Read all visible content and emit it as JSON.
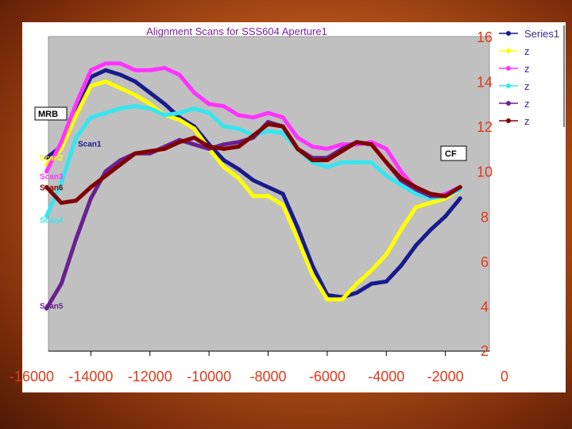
{
  "chart_data": {
    "type": "line",
    "title": "Alignment Scans for SSS604 Aperture1",
    "xlabel": "",
    "ylabel": "",
    "xlim": [
      -16000,
      0
    ],
    "ylim": [
      2,
      16
    ],
    "x_ticks": [
      "-16000",
      "-14000",
      "-12000",
      "-10000",
      "-8000",
      "-6000",
      "-4000",
      "-2000",
      "0"
    ],
    "y_ticks": [
      "2",
      "4",
      "6",
      "8",
      "10",
      "12",
      "14",
      "16"
    ],
    "grid": false,
    "legend_position": "right",
    "series": [
      {
        "name": "Series1",
        "label": "Scan1",
        "color": "#1a1a8c",
        "marker": "diamond",
        "points": [
          [
            -15500,
            10.6
          ],
          [
            -15000,
            11.1
          ],
          [
            -14500,
            12.8
          ],
          [
            -14000,
            14.2
          ],
          [
            -13500,
            14.5
          ],
          [
            -13000,
            14.3
          ],
          [
            -12500,
            14.0
          ],
          [
            -12000,
            13.5
          ],
          [
            -11500,
            13.0
          ],
          [
            -11000,
            12.4
          ],
          [
            -10500,
            12.0
          ],
          [
            -10000,
            11.2
          ],
          [
            -9500,
            10.5
          ],
          [
            -9000,
            10.1
          ],
          [
            -8500,
            9.6
          ],
          [
            -8000,
            9.3
          ],
          [
            -7500,
            9.0
          ],
          [
            -7000,
            7.5
          ],
          [
            -6500,
            5.8
          ],
          [
            -6000,
            4.5
          ],
          [
            -5500,
            4.4
          ],
          [
            -5000,
            4.6
          ],
          [
            -4500,
            5.0
          ],
          [
            -4000,
            5.1
          ],
          [
            -3500,
            5.8
          ],
          [
            -3000,
            6.7
          ],
          [
            -2500,
            7.4
          ],
          [
            -2000,
            8.0
          ],
          [
            -1500,
            8.8
          ]
        ]
      },
      {
        "name": "z",
        "label": "Scan2",
        "color": "#ffff00",
        "marker": "square",
        "points": [
          [
            -15500,
            10.3
          ],
          [
            -15000,
            11.0
          ],
          [
            -14500,
            12.5
          ],
          [
            -14000,
            13.8
          ],
          [
            -13500,
            14.0
          ],
          [
            -13000,
            13.7
          ],
          [
            -12500,
            13.4
          ],
          [
            -12000,
            13.0
          ],
          [
            -11500,
            12.5
          ],
          [
            -11000,
            12.3
          ],
          [
            -10500,
            11.9
          ],
          [
            -10000,
            11.0
          ],
          [
            -9500,
            10.2
          ],
          [
            -9000,
            9.7
          ],
          [
            -8500,
            8.9
          ],
          [
            -8000,
            8.9
          ],
          [
            -7500,
            8.5
          ],
          [
            -7000,
            7.0
          ],
          [
            -6500,
            5.4
          ],
          [
            -6000,
            4.3
          ],
          [
            -5500,
            4.3
          ],
          [
            -5000,
            5.0
          ],
          [
            -4500,
            5.6
          ],
          [
            -4000,
            6.3
          ],
          [
            -3500,
            7.4
          ],
          [
            -3000,
            8.4
          ],
          [
            -2500,
            8.6
          ],
          [
            -2000,
            8.8
          ],
          [
            -1500,
            9.2
          ]
        ]
      },
      {
        "name": "z",
        "label": "Scan3",
        "color": "#ff33ff",
        "marker": "triangle",
        "points": [
          [
            -15500,
            10.0
          ],
          [
            -15000,
            11.3
          ],
          [
            -14500,
            13.0
          ],
          [
            -14000,
            14.5
          ],
          [
            -13500,
            14.8
          ],
          [
            -13000,
            14.8
          ],
          [
            -12500,
            14.5
          ],
          [
            -12000,
            14.5
          ],
          [
            -11500,
            14.6
          ],
          [
            -11000,
            14.3
          ],
          [
            -10500,
            13.5
          ],
          [
            -10000,
            13.0
          ],
          [
            -9500,
            12.9
          ],
          [
            -9000,
            12.5
          ],
          [
            -8500,
            12.4
          ],
          [
            -8000,
            12.6
          ],
          [
            -7500,
            12.4
          ],
          [
            -7000,
            11.5
          ],
          [
            -6500,
            11.1
          ],
          [
            -6000,
            11.0
          ],
          [
            -5500,
            11.2
          ],
          [
            -5000,
            11.2
          ],
          [
            -4500,
            11.3
          ],
          [
            -4000,
            11.0
          ],
          [
            -3500,
            10.0
          ],
          [
            -3000,
            9.2
          ],
          [
            -2500,
            8.8
          ],
          [
            -2000,
            9.0
          ],
          [
            -1500,
            9.3
          ]
        ]
      },
      {
        "name": "z",
        "label": "Scan4",
        "color": "#33e6f0",
        "marker": "cross",
        "points": [
          [
            -15500,
            8.0
          ],
          [
            -15000,
            9.5
          ],
          [
            -14500,
            11.5
          ],
          [
            -14000,
            12.4
          ],
          [
            -13500,
            12.6
          ],
          [
            -13000,
            12.8
          ],
          [
            -12500,
            12.9
          ],
          [
            -12000,
            12.8
          ],
          [
            -11500,
            12.5
          ],
          [
            -11000,
            12.6
          ],
          [
            -10500,
            12.8
          ],
          [
            -10000,
            12.6
          ],
          [
            -9500,
            12.0
          ],
          [
            -9000,
            11.9
          ],
          [
            -8500,
            11.6
          ],
          [
            -8000,
            11.8
          ],
          [
            -7500,
            11.7
          ],
          [
            -7000,
            11.0
          ],
          [
            -6500,
            10.4
          ],
          [
            -6000,
            10.2
          ],
          [
            -5500,
            10.4
          ],
          [
            -5000,
            10.4
          ],
          [
            -4500,
            10.4
          ],
          [
            -4000,
            9.8
          ],
          [
            -3500,
            9.4
          ],
          [
            -3000,
            9.0
          ],
          [
            -2500,
            8.8
          ],
          [
            -2000,
            8.9
          ],
          [
            -1500,
            9.2
          ]
        ]
      },
      {
        "name": "z",
        "label": "Scan5",
        "color": "#6a2090",
        "marker": "star",
        "points": [
          [
            -15500,
            3.9
          ],
          [
            -15000,
            5.0
          ],
          [
            -14500,
            7.0
          ],
          [
            -14000,
            8.8
          ],
          [
            -13500,
            10.0
          ],
          [
            -13000,
            10.5
          ],
          [
            -12500,
            10.8
          ],
          [
            -12000,
            10.8
          ],
          [
            -11500,
            11.1
          ],
          [
            -11000,
            11.4
          ],
          [
            -10500,
            11.2
          ],
          [
            -10000,
            11.0
          ],
          [
            -9500,
            11.2
          ],
          [
            -9000,
            11.3
          ],
          [
            -8500,
            11.5
          ],
          [
            -8000,
            12.2
          ],
          [
            -7500,
            12.0
          ],
          [
            -7000,
            11.0
          ],
          [
            -6500,
            10.6
          ],
          [
            -6000,
            10.6
          ],
          [
            -5500,
            11.0
          ],
          [
            -5000,
            11.3
          ],
          [
            -4500,
            11.2
          ],
          [
            -4000,
            10.4
          ],
          [
            -3500,
            9.6
          ],
          [
            -3000,
            9.2
          ],
          [
            -2500,
            8.9
          ],
          [
            -2000,
            8.9
          ],
          [
            -1500,
            9.3
          ]
        ]
      },
      {
        "name": "z",
        "label": "Scan6",
        "color": "#800000",
        "marker": "circle",
        "points": [
          [
            -15500,
            9.3
          ],
          [
            -15000,
            8.6
          ],
          [
            -14500,
            8.7
          ],
          [
            -14000,
            9.3
          ],
          [
            -13500,
            9.8
          ],
          [
            -13000,
            10.3
          ],
          [
            -12500,
            10.8
          ],
          [
            -12000,
            10.9
          ],
          [
            -11500,
            11.0
          ],
          [
            -11000,
            11.3
          ],
          [
            -10500,
            11.5
          ],
          [
            -10000,
            11.1
          ],
          [
            -9500,
            11.0
          ],
          [
            -9000,
            11.1
          ],
          [
            -8500,
            11.6
          ],
          [
            -8000,
            12.1
          ],
          [
            -7500,
            12.0
          ],
          [
            -7000,
            11.0
          ],
          [
            -6500,
            10.5
          ],
          [
            -6000,
            10.5
          ],
          [
            -5500,
            10.9
          ],
          [
            -5000,
            11.3
          ],
          [
            -4500,
            11.2
          ],
          [
            -4000,
            10.4
          ],
          [
            -3500,
            9.7
          ],
          [
            -3000,
            9.3
          ],
          [
            -2500,
            9.0
          ],
          [
            -2000,
            8.9
          ],
          [
            -1500,
            9.3
          ]
        ]
      }
    ],
    "annotations": [
      "MRB",
      "CF"
    ]
  }
}
